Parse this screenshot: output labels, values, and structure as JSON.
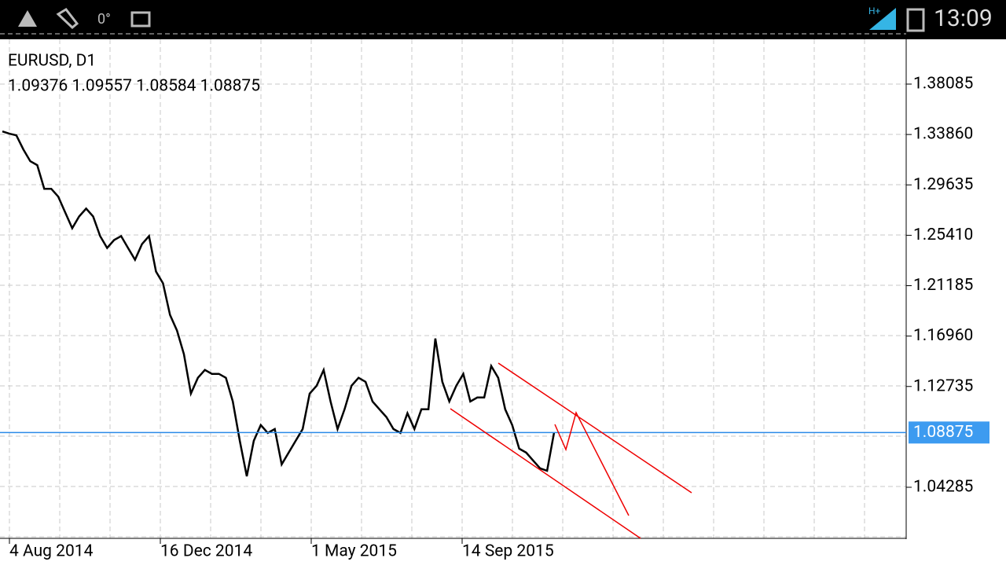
{
  "status_bar": {
    "network": "H+",
    "temperature": "0°",
    "time": "13:09"
  },
  "chart": {
    "symbol": "EURUSD, D1",
    "ohlc": "1.09376 1.09557 1.08584 1.08875",
    "price_ticks": [
      1.38085,
      {
        "value": 1.3386,
        "label": "1.33860"
      },
      1.29635,
      {
        "value": 1.2541,
        "label": "1.25410"
      },
      1.21185,
      {
        "value": 1.1696,
        "label": "1.16960"
      },
      1.12735,
      1.04285
    ],
    "current_price": {
      "value": 1.08875,
      "label": "1.08875"
    },
    "date_labels": [
      "4 Aug 2014",
      "16 Dec 2014",
      "1 May 2015",
      "14 Sep 2015"
    ],
    "prices": [
      1.3412,
      1.3393,
      1.3379,
      1.3261,
      1.3162,
      1.3129,
      1.2931,
      1.2931,
      1.2865,
      1.2732,
      1.26,
      1.2699,
      1.2765,
      1.2699,
      1.2534,
      1.2435,
      1.2501,
      1.2534,
      1.2435,
      1.2336,
      1.2468,
      1.2534,
      1.2237,
      1.2138,
      1.1874,
      1.1742,
      1.1544,
      1.1214,
      1.1346,
      1.1412,
      1.1379,
      1.1379,
      1.1346,
      1.1148,
      1.0818,
      1.0521,
      1.0818,
      1.095,
      1.0884,
      1.0917,
      1.062,
      1.0719,
      1.0818,
      1.0917,
      1.1214,
      1.128,
      1.1412,
      1.1148,
      1.0917,
      1.1082,
      1.128,
      1.1346,
      1.1313,
      1.1148,
      1.1082,
      1.1016,
      1.0917,
      1.0884,
      1.1049,
      1.0917,
      1.1082,
      1.1082,
      1.1676,
      1.1313,
      1.1148,
      1.128,
      1.1379,
      1.1148,
      1.1181,
      1.1181,
      1.1445,
      1.1346,
      1.1082,
      1.095,
      1.0752,
      1.0719,
      1.0653,
      1.0587,
      1.0567,
      1.08875
    ]
  }
}
